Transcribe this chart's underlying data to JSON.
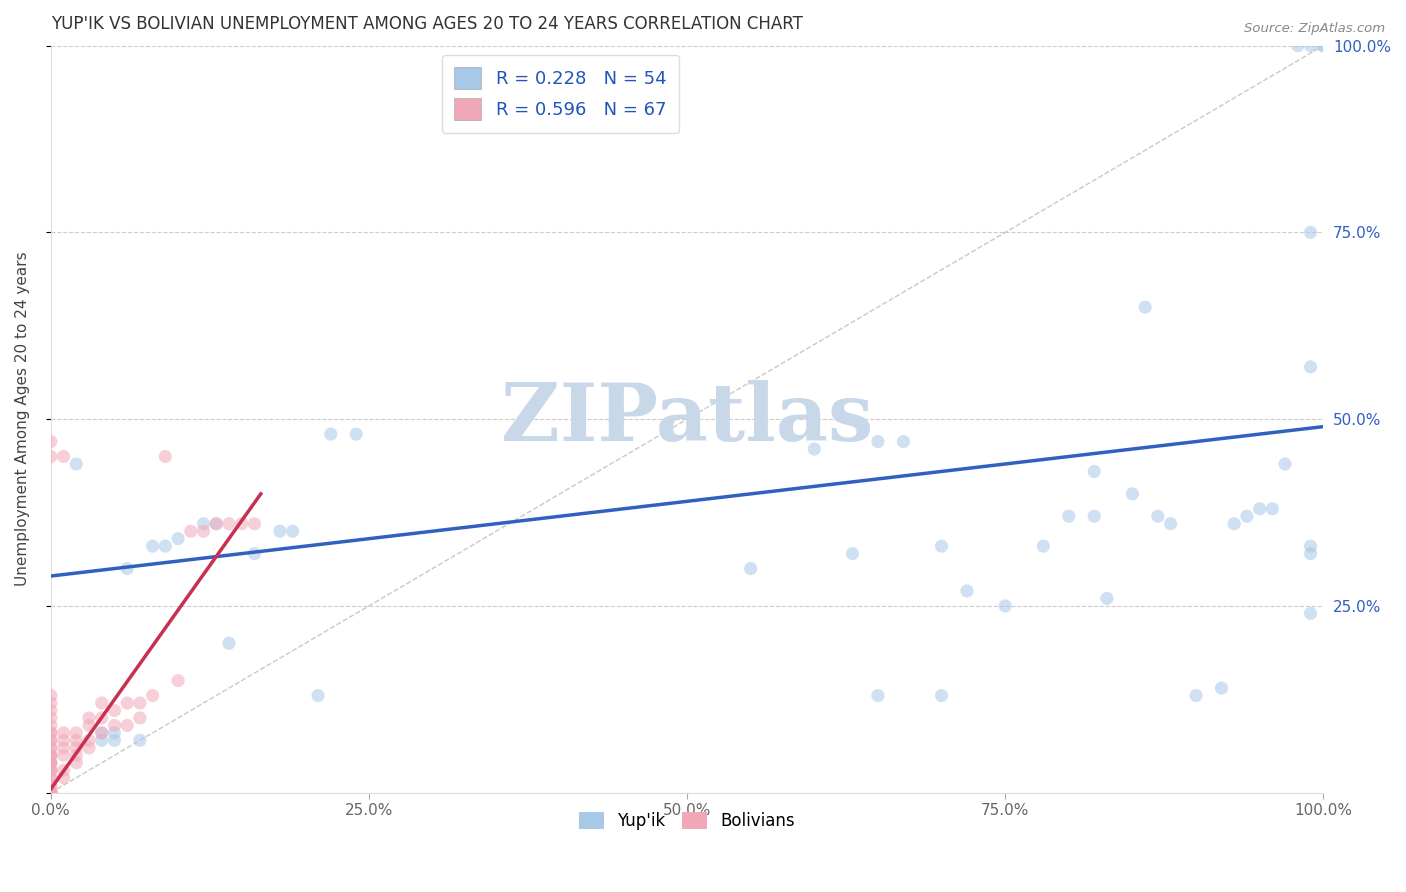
{
  "title": "YUP'IK VS BOLIVIAN UNEMPLOYMENT AMONG AGES 20 TO 24 YEARS CORRELATION CHART",
  "source": "Source: ZipAtlas.com",
  "ylabel": "Unemployment Among Ages 20 to 24 years",
  "xlim": [
    0,
    1
  ],
  "ylim": [
    0,
    1
  ],
  "xticks": [
    0.0,
    0.25,
    0.5,
    0.75,
    1.0
  ],
  "yticks": [
    0.0,
    0.25,
    0.5,
    0.75,
    1.0
  ],
  "xticklabels": [
    "0.0%",
    "25.0%",
    "50.0%",
    "75.0%",
    "100.0%"
  ],
  "blue_R": 0.228,
  "blue_N": 54,
  "pink_R": 0.596,
  "pink_N": 67,
  "blue_color": "#a8c8e8",
  "pink_color": "#f0a8b8",
  "blue_line_color": "#3060c0",
  "pink_line_color": "#c83050",
  "legend_R_color": "#2255bb",
  "watermark": "ZIPatlas",
  "watermark_color": "#c8d8e8",
  "blue_scatter_x": [
    0.02,
    0.04,
    0.05,
    0.06,
    0.07,
    0.08,
    0.09,
    0.1,
    0.12,
    0.13,
    0.14,
    0.16,
    0.18,
    0.19,
    0.21,
    0.55,
    0.6,
    0.63,
    0.65,
    0.7,
    0.72,
    0.75,
    0.78,
    0.8,
    0.82,
    0.83,
    0.85,
    0.86,
    0.87,
    0.88,
    0.9,
    0.92,
    0.93,
    0.94,
    0.95,
    0.96,
    0.97,
    0.98,
    0.99,
    0.99,
    0.99,
    0.99,
    0.99,
    1.0,
    1.0,
    0.04,
    0.05,
    0.22,
    0.24,
    0.65,
    0.67,
    0.7,
    0.82,
    0.99
  ],
  "blue_scatter_y": [
    0.44,
    0.07,
    0.07,
    0.3,
    0.07,
    0.33,
    0.33,
    0.34,
    0.36,
    0.36,
    0.2,
    0.32,
    0.35,
    0.35,
    0.13,
    0.3,
    0.46,
    0.32,
    0.13,
    0.13,
    0.27,
    0.25,
    0.33,
    0.37,
    0.37,
    0.26,
    0.4,
    0.65,
    0.37,
    0.36,
    0.13,
    0.14,
    0.36,
    0.37,
    0.38,
    0.38,
    0.44,
    1.0,
    1.0,
    0.75,
    0.57,
    0.32,
    0.24,
    1.0,
    1.0,
    0.08,
    0.08,
    0.48,
    0.48,
    0.47,
    0.47,
    0.33,
    0.43,
    0.33
  ],
  "pink_scatter_x": [
    0.0,
    0.0,
    0.0,
    0.0,
    0.0,
    0.0,
    0.0,
    0.0,
    0.0,
    0.0,
    0.0,
    0.0,
    0.0,
    0.0,
    0.0,
    0.0,
    0.0,
    0.0,
    0.0,
    0.0,
    0.0,
    0.0,
    0.0,
    0.0,
    0.0,
    0.0,
    0.0,
    0.0,
    0.0,
    0.0,
    0.0,
    0.01,
    0.01,
    0.01,
    0.01,
    0.01,
    0.01,
    0.02,
    0.02,
    0.02,
    0.02,
    0.02,
    0.03,
    0.03,
    0.03,
    0.03,
    0.04,
    0.04,
    0.04,
    0.05,
    0.05,
    0.06,
    0.06,
    0.07,
    0.07,
    0.08,
    0.09,
    0.1,
    0.11,
    0.12,
    0.13,
    0.14,
    0.15,
    0.16,
    0.0,
    0.0,
    0.01
  ],
  "pink_scatter_y": [
    0.0,
    0.0,
    0.0,
    0.0,
    0.0,
    0.0,
    0.0,
    0.01,
    0.01,
    0.02,
    0.02,
    0.03,
    0.03,
    0.04,
    0.05,
    0.06,
    0.07,
    0.08,
    0.09,
    0.1,
    0.11,
    0.12,
    0.13,
    0.04,
    0.05,
    0.06,
    0.07,
    0.08,
    0.03,
    0.04,
    0.05,
    0.02,
    0.03,
    0.05,
    0.06,
    0.07,
    0.08,
    0.04,
    0.05,
    0.06,
    0.07,
    0.08,
    0.06,
    0.07,
    0.09,
    0.1,
    0.08,
    0.1,
    0.12,
    0.09,
    0.11,
    0.09,
    0.12,
    0.1,
    0.12,
    0.13,
    0.45,
    0.15,
    0.35,
    0.35,
    0.36,
    0.36,
    0.36,
    0.36,
    0.45,
    0.47,
    0.45
  ],
  "blue_line_x": [
    0.0,
    1.0
  ],
  "blue_line_y": [
    0.29,
    0.49
  ],
  "pink_line_x": [
    0.0,
    0.165
  ],
  "pink_line_y": [
    0.005,
    0.4
  ],
  "marker_size": 90,
  "marker_alpha": 0.55,
  "figsize": [
    14.06,
    8.92
  ],
  "dpi": 100,
  "background_color": "#ffffff",
  "grid_color": "#cccccc",
  "right_yticks": [
    0.25,
    0.5,
    0.75,
    1.0
  ],
  "right_yticklabels": [
    "25.0%",
    "50.0%",
    "75.0%",
    "100.0%"
  ]
}
